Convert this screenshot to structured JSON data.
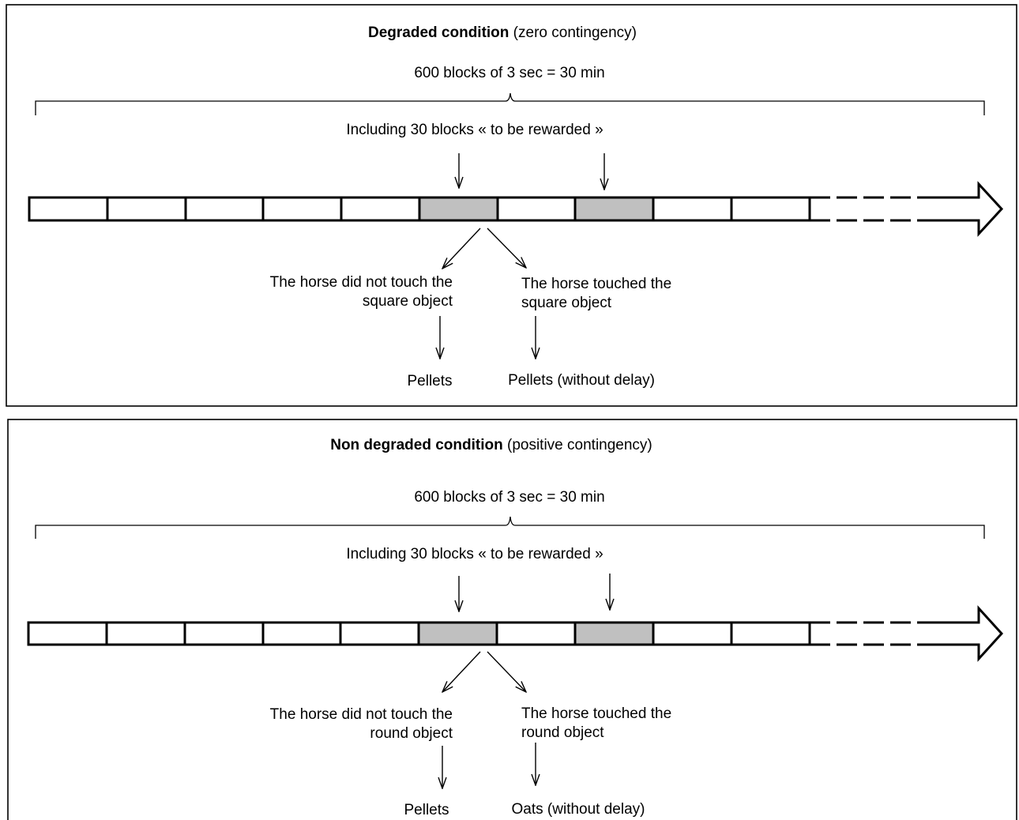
{
  "panels": [
    {
      "title_bold": "Degraded condition",
      "title_rest": " (zero contingency)",
      "duration": "600 blocks of 3 sec = 30 min",
      "rewarded": "Including 30 blocks « to be rewarded »",
      "left_branch": [
        "The horse did not touch the",
        "square object"
      ],
      "right_branch": [
        "The horse touched the",
        "square object"
      ],
      "left_outcome": "Pellets",
      "right_outcome": "Pellets (without delay)"
    },
    {
      "title_bold": "Non degraded condition",
      "title_rest": " (positive contingency)",
      "duration": "600 blocks of 3 sec = 30 min",
      "rewarded": "Including 30 blocks « to be rewarded »",
      "left_branch": [
        "The horse did not touch the",
        "round object"
      ],
      "right_branch": [
        "The horse touched the",
        "round object"
      ],
      "left_outcome": "Pellets",
      "right_outcome": "Oats (without delay)"
    }
  ],
  "colors": {
    "stroke": "#000000",
    "highlight_block": "#c0c0c0",
    "block": "#ffffff"
  }
}
